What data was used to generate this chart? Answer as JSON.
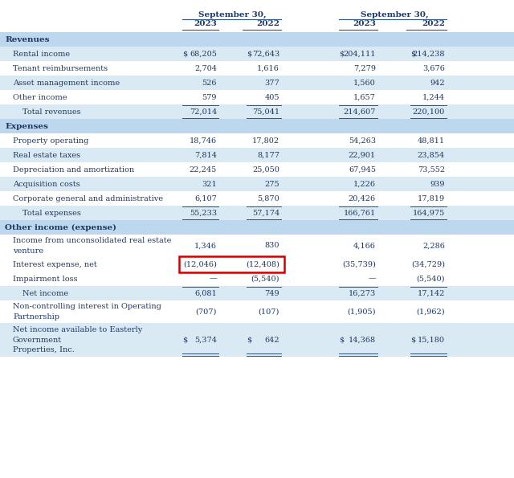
{
  "rows": [
    {
      "label": "Revenues",
      "indent": 0,
      "type": "section",
      "v1": "",
      "v2": "",
      "v3": "",
      "v4": "",
      "dollar": false
    },
    {
      "label": "Rental income",
      "indent": 1,
      "type": "data",
      "v1": "68,205",
      "v2": "72,643",
      "v3": "204,111",
      "v4": "214,238",
      "dollar": true
    },
    {
      "label": "Tenant reimbursements",
      "indent": 1,
      "type": "data",
      "v1": "2,704",
      "v2": "1,616",
      "v3": "7,279",
      "v4": "3,676",
      "dollar": false
    },
    {
      "label": "Asset management income",
      "indent": 1,
      "type": "data",
      "v1": "526",
      "v2": "377",
      "v3": "1,560",
      "v4": "942",
      "dollar": false
    },
    {
      "label": "Other income",
      "indent": 1,
      "type": "data",
      "v1": "579",
      "v2": "405",
      "v3": "1,657",
      "v4": "1,244",
      "dollar": false
    },
    {
      "label": "Total revenues",
      "indent": 2,
      "type": "total",
      "v1": "72,014",
      "v2": "75,041",
      "v3": "214,607",
      "v4": "220,100",
      "dollar": false
    },
    {
      "label": "Expenses",
      "indent": 0,
      "type": "section",
      "v1": "",
      "v2": "",
      "v3": "",
      "v4": "",
      "dollar": false
    },
    {
      "label": "Property operating",
      "indent": 1,
      "type": "data",
      "v1": "18,746",
      "v2": "17,802",
      "v3": "54,263",
      "v4": "48,811",
      "dollar": false
    },
    {
      "label": "Real estate taxes",
      "indent": 1,
      "type": "data",
      "v1": "7,814",
      "v2": "8,177",
      "v3": "22,901",
      "v4": "23,854",
      "dollar": false
    },
    {
      "label": "Depreciation and amortization",
      "indent": 1,
      "type": "data",
      "v1": "22,245",
      "v2": "25,050",
      "v3": "67,945",
      "v4": "73,552",
      "dollar": false
    },
    {
      "label": "Acquisition costs",
      "indent": 1,
      "type": "data",
      "v1": "321",
      "v2": "275",
      "v3": "1,226",
      "v4": "939",
      "dollar": false
    },
    {
      "label": "Corporate general and administrative",
      "indent": 1,
      "type": "data",
      "v1": "6,107",
      "v2": "5,870",
      "v3": "20,426",
      "v4": "17,819",
      "dollar": false
    },
    {
      "label": "Total expenses",
      "indent": 2,
      "type": "total",
      "v1": "55,233",
      "v2": "57,174",
      "v3": "166,761",
      "v4": "164,975",
      "dollar": false
    },
    {
      "label": "Other income (expense)",
      "indent": 0,
      "type": "section",
      "v1": "",
      "v2": "",
      "v3": "",
      "v4": "",
      "dollar": false
    },
    {
      "label": "Income from unconsolidated real estate\nventure",
      "indent": 1,
      "type": "data2",
      "v1": "1,346",
      "v2": "830",
      "v3": "4,166",
      "v4": "2,286",
      "dollar": false
    },
    {
      "label": "Interest expense, net",
      "indent": 1,
      "type": "highlight",
      "v1": "(12,046)",
      "v2": "(12,408)",
      "v3": "(35,739)",
      "v4": "(34,729)",
      "dollar": false
    },
    {
      "label": "Impairment loss",
      "indent": 1,
      "type": "data",
      "v1": "—",
      "v2": "(5,540)",
      "v3": "—",
      "v4": "(5,540)",
      "dollar": false
    },
    {
      "label": "Net income",
      "indent": 0,
      "type": "netincome",
      "v1": "6,081",
      "v2": "749",
      "v3": "16,273",
      "v4": "17,142",
      "dollar": false
    },
    {
      "label": "Non-controlling interest in Operating\nPartnership",
      "indent": 1,
      "type": "data2",
      "v1": "(707)",
      "v2": "(107)",
      "v3": "(1,905)",
      "v4": "(1,962)",
      "dollar": false
    },
    {
      "label": "Net income available to Easterly\nGovernment\nProperties, Inc.",
      "indent": 0,
      "type": "final",
      "v1": "5,374",
      "v2": "642",
      "v3": "14,368",
      "v4": "15,180",
      "dollar": true
    }
  ],
  "bg_section": "#bdd7ee",
  "bg_light": "#daeaf5",
  "bg_white": "#ffffff",
  "text_color": "#1f3864",
  "line_color": "#2c5282",
  "red_border": "#cc0000",
  "font_size": 7.0,
  "header_font_size": 7.5
}
